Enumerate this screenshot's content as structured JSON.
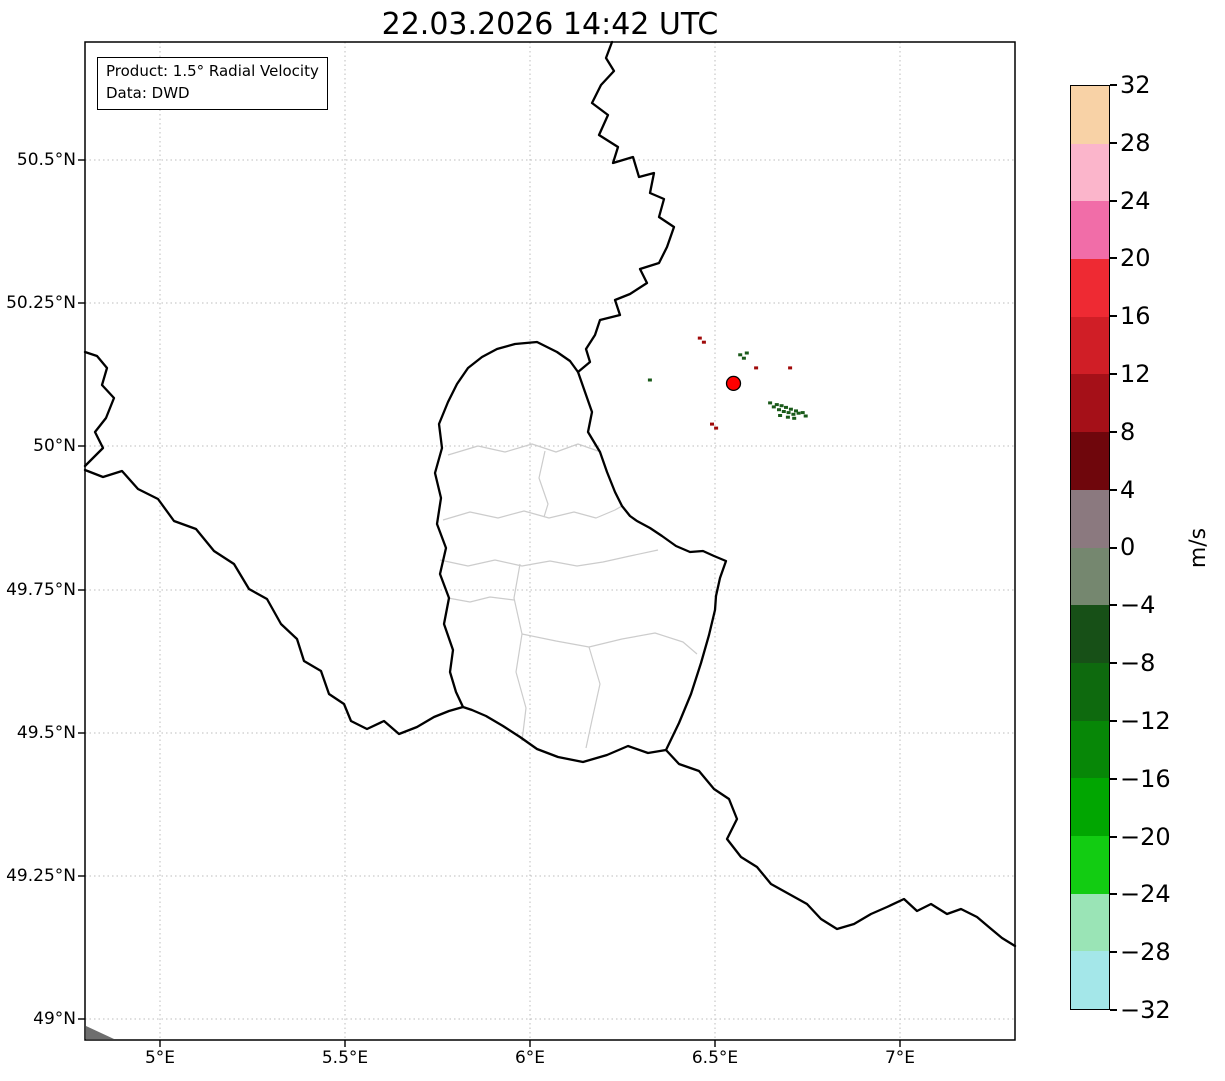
{
  "title": "22.03.2026 14:42 UTC",
  "info_box": {
    "product": "Product: 1.5° Radial Velocity",
    "data_source": "Data: DWD"
  },
  "axes": {
    "x_tick_labels": [
      "5°E",
      "5.5°E",
      "6°E",
      "6.5°E",
      "7°E"
    ],
    "y_tick_labels": [
      "50.5°N",
      "50.25°N",
      "50°N",
      "49.75°N",
      "49.5°N",
      "49.25°N",
      "49°N"
    ]
  },
  "colorbar": {
    "unit": "m/s",
    "tick_labels": [
      "32",
      "28",
      "24",
      "20",
      "16",
      "12",
      "8",
      "4",
      "0",
      "−4",
      "−8",
      "−12",
      "−16",
      "−20",
      "−24",
      "−28",
      "−32"
    ],
    "segments": [
      {
        "from": 28,
        "to": 32,
        "color": "#F8D2A6"
      },
      {
        "from": 24,
        "to": 28,
        "color": "#FBB5CB"
      },
      {
        "from": 20,
        "to": 24,
        "color": "#F16DA8"
      },
      {
        "from": 16,
        "to": 20,
        "color": "#EE2A33"
      },
      {
        "from": 12,
        "to": 16,
        "color": "#D01E26"
      },
      {
        "from": 8,
        "to": 12,
        "color": "#A51018"
      },
      {
        "from": 4,
        "to": 8,
        "color": "#6F060C"
      },
      {
        "from": 0,
        "to": 4,
        "color": "#8B797F"
      },
      {
        "from": -4,
        "to": 0,
        "color": "#75876F"
      },
      {
        "from": -8,
        "to": -4,
        "color": "#175017"
      },
      {
        "from": -12,
        "to": -8,
        "color": "#0E6A0E"
      },
      {
        "from": -16,
        "to": -12,
        "color": "#078707"
      },
      {
        "from": -20,
        "to": -16,
        "color": "#01A601"
      },
      {
        "from": -24,
        "to": -20,
        "color": "#12CC12"
      },
      {
        "from": -28,
        "to": -24,
        "color": "#9AE4B6"
      },
      {
        "from": -32,
        "to": -28,
        "color": "#A4E7E9"
      }
    ]
  },
  "map": {
    "country_border_color": "#000000",
    "district_border_color": "#cccccc",
    "radar_marker_color": "#ff0000",
    "echo_negative_color": "#1a5a1a",
    "echo_positive_color": "#a00a0a"
  },
  "chart_data": {
    "type": "heatmap",
    "title": "22.03.2026 14:42 UTC",
    "product": "1.5° Radial Velocity",
    "data_source": "DWD",
    "colorbar": {
      "label": "m/s",
      "vmin": -32,
      "vmax": 32,
      "tick_step": 4
    },
    "x_ticks": [
      "5°E",
      "5.5°E",
      "6°E",
      "6.5°E",
      "7°E"
    ],
    "y_ticks": [
      "50.5°N",
      "50.25°N",
      "50°N",
      "49.75°N",
      "49.5°N",
      "49.25°N",
      "49°N"
    ],
    "lon_range": [
      4.8,
      7.31
    ],
    "lat_range": [
      48.96,
      50.71
    ],
    "radar_site": {
      "lon": 6.55,
      "lat": 50.11
    },
    "echoes": [
      {
        "lon": 6.649,
        "lat": 50.076,
        "sign": "neg"
      },
      {
        "lon": 6.659,
        "lat": 50.069,
        "sign": "neg"
      },
      {
        "lon": 6.667,
        "lat": 50.073,
        "sign": "neg"
      },
      {
        "lon": 6.673,
        "lat": 50.064,
        "sign": "neg"
      },
      {
        "lon": 6.68,
        "lat": 50.071,
        "sign": "neg"
      },
      {
        "lon": 6.686,
        "lat": 50.061,
        "sign": "neg"
      },
      {
        "lon": 6.692,
        "lat": 50.068,
        "sign": "neg"
      },
      {
        "lon": 6.699,
        "lat": 50.059,
        "sign": "neg"
      },
      {
        "lon": 6.705,
        "lat": 50.065,
        "sign": "neg"
      },
      {
        "lon": 6.712,
        "lat": 50.056,
        "sign": "neg"
      },
      {
        "lon": 6.719,
        "lat": 50.062,
        "sign": "neg"
      },
      {
        "lon": 6.726,
        "lat": 50.058,
        "sign": "neg"
      },
      {
        "lon": 6.676,
        "lat": 50.054,
        "sign": "neg"
      },
      {
        "lon": 6.697,
        "lat": 50.051,
        "sign": "neg"
      },
      {
        "lon": 6.714,
        "lat": 50.049,
        "sign": "neg"
      },
      {
        "lon": 6.737,
        "lat": 50.059,
        "sign": "neg"
      },
      {
        "lon": 6.745,
        "lat": 50.053,
        "sign": "neg"
      },
      {
        "lon": 6.568,
        "lat": 50.16,
        "sign": "neg"
      },
      {
        "lon": 6.578,
        "lat": 50.154,
        "sign": "neg"
      },
      {
        "lon": 6.586,
        "lat": 50.163,
        "sign": "neg"
      },
      {
        "lon": 6.324,
        "lat": 50.116,
        "sign": "neg"
      },
      {
        "lon": 6.459,
        "lat": 50.189,
        "sign": "pos"
      },
      {
        "lon": 6.47,
        "lat": 50.182,
        "sign": "pos"
      },
      {
        "lon": 6.611,
        "lat": 50.137,
        "sign": "pos"
      },
      {
        "lon": 6.703,
        "lat": 50.137,
        "sign": "pos"
      },
      {
        "lon": 6.492,
        "lat": 50.039,
        "sign": "pos"
      },
      {
        "lon": 6.503,
        "lat": 50.032,
        "sign": "pos"
      }
    ]
  }
}
